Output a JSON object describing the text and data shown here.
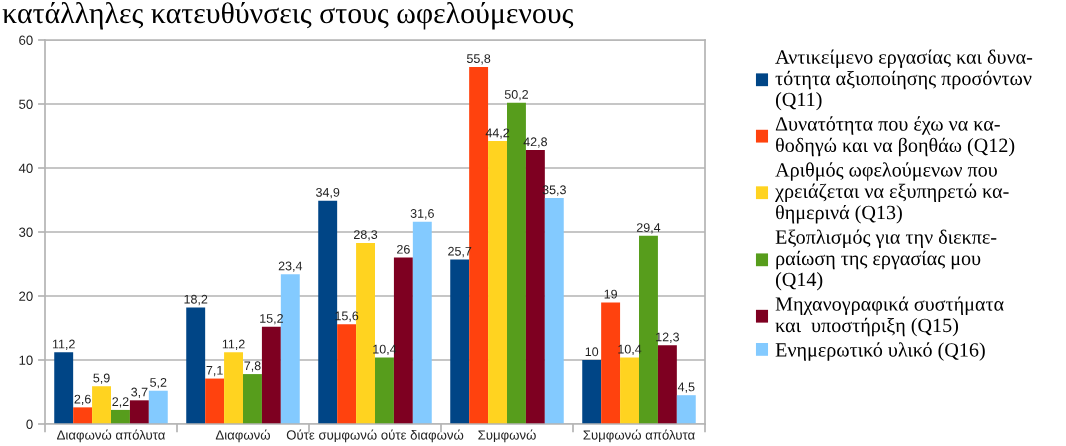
{
  "chart_data": {
    "type": "bar",
    "title": "κατάλληλες κατευθύνσεις στους ωφελούμενους",
    "categories": [
      "Διαφωνώ απόλυτα",
      "Διαφωνώ",
      "Ούτε συμφωνώ ούτε διαφωνώ",
      "Συμφωνώ",
      "Συμφωνώ απόλυτα"
    ],
    "series": [
      {
        "name": "Αντικείμενο εργασίας και δυνα-\nτότητα αξιοποίησης προσόντων\n(Q11)",
        "color": "#004586",
        "values": [
          11.2,
          18.2,
          34.9,
          25.7,
          10
        ],
        "value_labels": [
          "11,2",
          "18,2",
          "34,9",
          "25,7",
          "10"
        ]
      },
      {
        "name": "Δυνατότητα που έχω να κα-\nθοδηγώ και να βοηθάω (Q12)",
        "color": "#ff420e",
        "values": [
          2.6,
          7.1,
          15.6,
          55.8,
          19
        ],
        "value_labels": [
          "2,6",
          "7,1",
          "15,6",
          "55,8",
          "19"
        ]
      },
      {
        "name": "Αριθμός ωφελούμενων που\nχρειάζεται να εξυπηρετώ κα-\nθημερινά (Q13)",
        "color": "#ffd320",
        "values": [
          5.9,
          11.2,
          28.3,
          44.2,
          10.4
        ],
        "value_labels": [
          "5,9",
          "11,2",
          "28,3",
          "44,2",
          "10,4"
        ]
      },
      {
        "name": "Εξοπλισμός για την διεκπε-\nραίωση της εργασίας μου\n(Q14)",
        "color": "#579d1c",
        "values": [
          2.2,
          7.8,
          10.4,
          50.2,
          29.4
        ],
        "value_labels": [
          "2,2",
          "7,8",
          "10,4",
          "50,2",
          "29,4"
        ]
      },
      {
        "name": "Μηχανογραφικά συστήματα\nκαι  υποστήριξη (Q15)",
        "color": "#7e0021",
        "values": [
          3.7,
          15.2,
          26,
          42.8,
          12.3
        ],
        "value_labels": [
          "3,7",
          "15,2",
          "26",
          "42,8",
          "12,3"
        ]
      },
      {
        "name": "Ενημερωτικό υλικό (Q16)",
        "color": "#83caff",
        "values": [
          5.2,
          23.4,
          31.6,
          35.3,
          4.5
        ],
        "value_labels": [
          "5,2",
          "23,4",
          "31,6",
          "35,3",
          "4,5"
        ]
      }
    ],
    "ylim": [
      0,
      60
    ],
    "yticks": [
      0,
      10,
      20,
      30,
      40,
      50,
      60
    ],
    "grid": "y",
    "legend": "right"
  }
}
